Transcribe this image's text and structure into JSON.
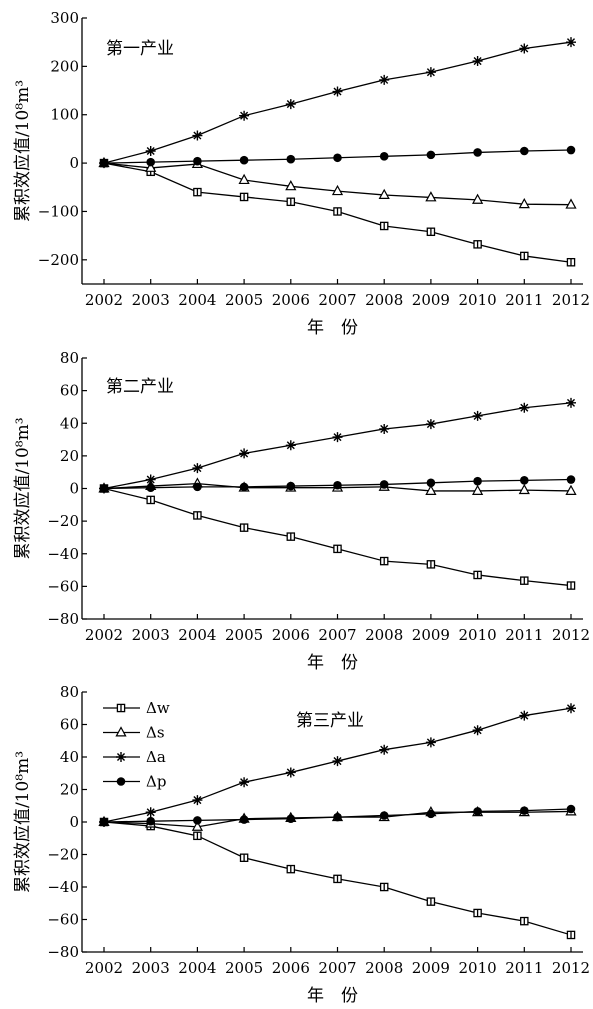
{
  "figure": {
    "xlabel": "年　份",
    "ylabel": "累积效应值/10⁸m³"
  },
  "legend": {
    "items": [
      {
        "key": "w",
        "label": "Δw",
        "marker": "square-open"
      },
      {
        "key": "s",
        "label": "Δs",
        "marker": "triangle-open"
      },
      {
        "key": "a",
        "label": "Δa",
        "marker": "star"
      },
      {
        "key": "p",
        "label": "Δp",
        "marker": "circle-filled"
      }
    ]
  },
  "chart_data": [
    {
      "type": "line",
      "title": "第一产业",
      "xlabel": "年　份",
      "ylabel": "累积效应值/10⁸m³",
      "x": [
        2002,
        2003,
        2004,
        2005,
        2006,
        2007,
        2008,
        2009,
        2010,
        2011,
        2012
      ],
      "ylim": [
        -250,
        300
      ],
      "yticks": [
        -200,
        -100,
        0,
        100,
        200,
        300
      ],
      "series": [
        {
          "key": "w",
          "name": "Δw",
          "values": [
            0,
            -18,
            -60,
            -70,
            -80,
            -100,
            -130,
            -142,
            -168,
            -192,
            -205
          ]
        },
        {
          "key": "s",
          "name": "Δs",
          "values": [
            0,
            -10,
            -2,
            -35,
            -48,
            -58,
            -66,
            -71,
            -76,
            -85,
            -86
          ]
        },
        {
          "key": "a",
          "name": "Δa",
          "values": [
            0,
            25,
            57,
            98,
            122,
            148,
            172,
            188,
            211,
            237,
            250
          ]
        },
        {
          "key": "p",
          "name": "Δp",
          "values": [
            0,
            2,
            4,
            6,
            8,
            11,
            14,
            17,
            22,
            25,
            27
          ]
        }
      ]
    },
    {
      "type": "line",
      "title": "第二产业",
      "xlabel": "年　份",
      "ylabel": "累积效应值/10⁸m³",
      "x": [
        2002,
        2003,
        2004,
        2005,
        2006,
        2007,
        2008,
        2009,
        2010,
        2011,
        2012
      ],
      "ylim": [
        -80,
        80
      ],
      "yticks": [
        -80,
        -60,
        -40,
        -20,
        0,
        20,
        40,
        60,
        80
      ],
      "series": [
        {
          "key": "w",
          "name": "Δw",
          "values": [
            0,
            -7,
            -16.5,
            -24,
            -29.5,
            -37,
            -44.5,
            -46.5,
            -53,
            -56.5,
            -59.5
          ]
        },
        {
          "key": "s",
          "name": "Δs",
          "values": [
            0,
            1.5,
            3,
            0.5,
            0.5,
            0.5,
            1,
            -1.5,
            -1.5,
            -1,
            -1.5
          ]
        },
        {
          "key": "a",
          "name": "Δa",
          "values": [
            0,
            5.5,
            12.5,
            21.5,
            26.5,
            31.5,
            36.5,
            39.5,
            44.5,
            49.5,
            52.5
          ]
        },
        {
          "key": "p",
          "name": "Δp",
          "values": [
            0,
            0.5,
            1,
            1,
            1.5,
            2,
            2.5,
            3.5,
            4.5,
            5,
            5.5
          ]
        }
      ]
    },
    {
      "type": "line",
      "title": "第三产业",
      "xlabel": "年　份",
      "ylabel": "累积效应值/10⁸m³",
      "x": [
        2002,
        2003,
        2004,
        2005,
        2006,
        2007,
        2008,
        2009,
        2010,
        2011,
        2012
      ],
      "ylim": [
        -80,
        80
      ],
      "yticks": [
        -80,
        -60,
        -40,
        -20,
        0,
        20,
        40,
        60,
        80
      ],
      "series": [
        {
          "key": "w",
          "name": "Δw",
          "values": [
            0,
            -2.5,
            -8.5,
            -22,
            -29,
            -35,
            -40,
            -49,
            -56,
            -61,
            -69.5
          ]
        },
        {
          "key": "s",
          "name": "Δs",
          "values": [
            0,
            -1,
            -3,
            2,
            2.5,
            3,
            3,
            6,
            6,
            6,
            6.5
          ]
        },
        {
          "key": "a",
          "name": "Δa",
          "values": [
            0,
            6,
            13.5,
            24.5,
            30.5,
            37.5,
            44.5,
            49,
            56.5,
            65.5,
            70
          ]
        },
        {
          "key": "p",
          "name": "Δp",
          "values": [
            0,
            0.5,
            1,
            1.5,
            2,
            3,
            4,
            5,
            6.5,
            7,
            8
          ]
        }
      ]
    }
  ]
}
